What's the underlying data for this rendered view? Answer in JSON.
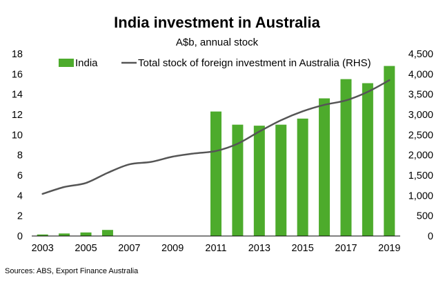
{
  "chart_data": {
    "type": "bar",
    "title": "India investment in Australia",
    "subtitle": "A$b, annual stock",
    "source": "Sources: ABS, Export Finance Australia",
    "x": [
      2003,
      2004,
      2005,
      2006,
      2007,
      2008,
      2009,
      2010,
      2011,
      2012,
      2013,
      2014,
      2015,
      2016,
      2017,
      2018,
      2019
    ],
    "x_tick_labels": [
      "2003",
      "2005",
      "2007",
      "2009",
      "2011",
      "2013",
      "2015",
      "2017",
      "2019"
    ],
    "y_left": {
      "ylim": [
        0,
        18
      ],
      "ticks": [
        "0",
        "2",
        "4",
        "6",
        "8",
        "10",
        "12",
        "14",
        "16",
        "18"
      ]
    },
    "y_right": {
      "ylim": [
        0,
        4500
      ],
      "ticks": [
        "0",
        "500",
        "1,000",
        "1,500",
        "2,000",
        "2,500",
        "3,000",
        "3,500",
        "4,000",
        "4,500"
      ]
    },
    "series": [
      {
        "name": "India",
        "type": "bar",
        "axis": "left",
        "color": "#4dab2c",
        "values": [
          0.15,
          0.25,
          0.35,
          0.6,
          null,
          null,
          null,
          null,
          12.3,
          11.0,
          10.9,
          11.0,
          11.6,
          13.6,
          15.5,
          15.1,
          16.8
        ]
      },
      {
        "name": "Total stock of foreign investment in Australia (RHS)",
        "type": "line",
        "axis": "right",
        "color": "#555555",
        "values": [
          1040,
          1210,
          1310,
          1560,
          1770,
          1830,
          1960,
          2040,
          2100,
          2280,
          2580,
          2860,
          3080,
          3240,
          3350,
          3560,
          3850
        ]
      }
    ],
    "legend_position": "top",
    "grid": false
  }
}
